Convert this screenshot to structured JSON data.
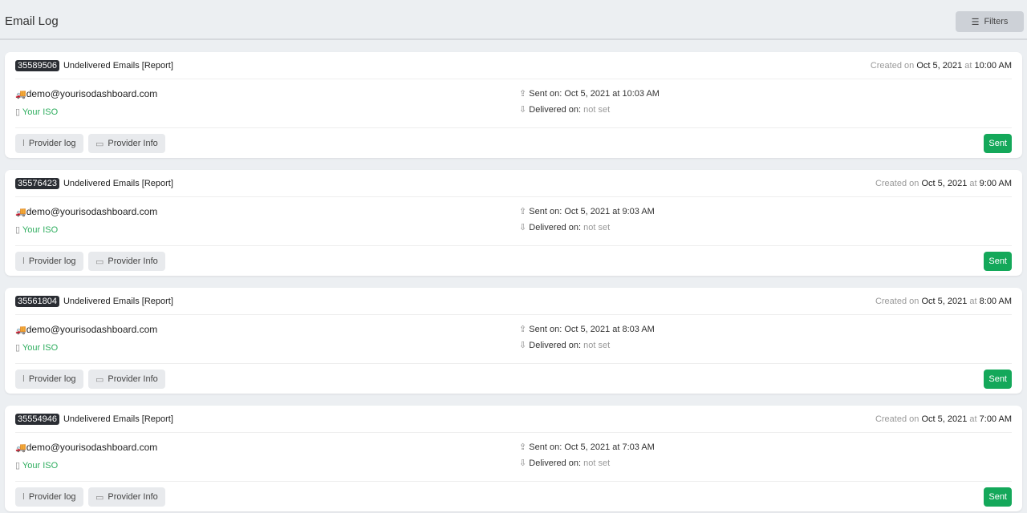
{
  "header": {
    "title": "Email Log",
    "filters_label": "Filters"
  },
  "labels": {
    "created_on": "Created on",
    "at": "at",
    "sent_on": "Sent on:",
    "delivered_on": "Delivered on:",
    "provider_log": "Provider log",
    "provider_info": "Provider Info"
  },
  "colors": {
    "accent": "#14a85a",
    "iso": "#2fae5f"
  },
  "entries": [
    {
      "id": "35589506",
      "subject": "Undelivered Emails [Report]",
      "created_date": "Oct 5, 2021",
      "created_time": "10:00 AM",
      "email": "demo@yourisodashboard.com",
      "iso": "Your ISO",
      "sent": "Oct 5, 2021 at 10:03 AM",
      "delivered": "not set",
      "status": "Sent"
    },
    {
      "id": "35576423",
      "subject": "Undelivered Emails [Report]",
      "created_date": "Oct 5, 2021",
      "created_time": "9:00 AM",
      "email": "demo@yourisodashboard.com",
      "iso": "Your ISO",
      "sent": "Oct 5, 2021 at 9:03 AM",
      "delivered": "not set",
      "status": "Sent"
    },
    {
      "id": "35561804",
      "subject": "Undelivered Emails [Report]",
      "created_date": "Oct 5, 2021",
      "created_time": "8:00 AM",
      "email": "demo@yourisodashboard.com",
      "iso": "Your ISO",
      "sent": "Oct 5, 2021 at 8:03 AM",
      "delivered": "not set",
      "status": "Sent"
    },
    {
      "id": "35554946",
      "subject": "Undelivered Emails [Report]",
      "created_date": "Oct 5, 2021",
      "created_time": "7:00 AM",
      "email": "demo@yourisodashboard.com",
      "iso": "Your ISO",
      "sent": "Oct 5, 2021 at 7:03 AM",
      "delivered": "not set",
      "status": "Sent"
    }
  ]
}
